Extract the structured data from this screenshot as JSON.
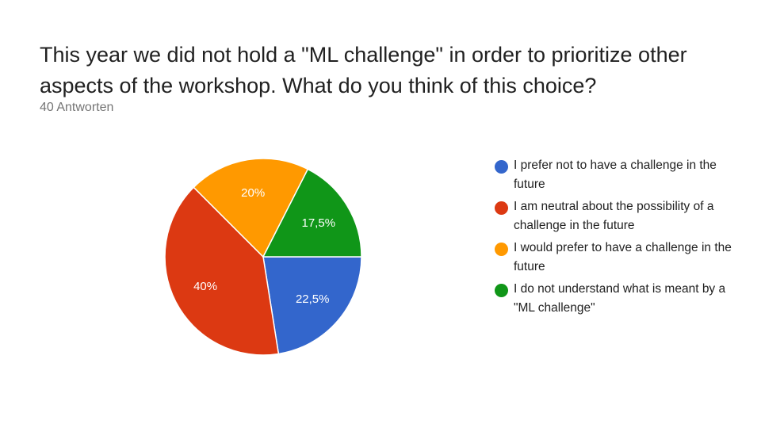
{
  "question": {
    "title": "This year we did not hold a \"ML challenge\" in order to prioritize other aspects of the workshop.  What do you think of this choice?",
    "response_count": "40 Antworten"
  },
  "chart_data": {
    "type": "pie",
    "slices": [
      {
        "label": "I prefer not to have a challenge in the future",
        "value": 22.5,
        "display": "22,5%",
        "color": "#3366cc"
      },
      {
        "label": "I am neutral about the possibility of a challenge in the future",
        "value": 40,
        "display": "40%",
        "color": "#dc3912"
      },
      {
        "label": "I would prefer to have a challenge in the future",
        "value": 20,
        "display": "20%",
        "color": "#ff9900"
      },
      {
        "label": "I do not understand what is meant by a \"ML challenge\"",
        "value": 17.5,
        "display": "17,5%",
        "color": "#109618"
      }
    ],
    "legend_position": "right"
  }
}
